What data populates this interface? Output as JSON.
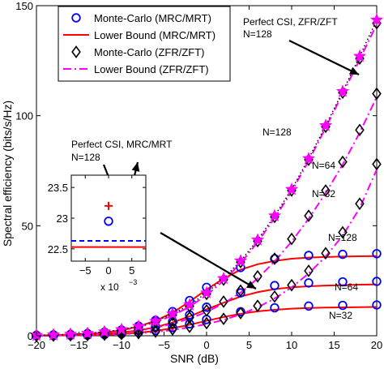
{
  "chart_data": {
    "type": "line",
    "xlabel": "SNR (dB)",
    "ylabel": "Spectral efficiency (bits/s/Hz)",
    "xlim": [
      -20,
      20
    ],
    "ylim": [
      0,
      150
    ],
    "x_ticks": [
      -20,
      -15,
      -10,
      -5,
      0,
      5,
      10,
      15,
      20
    ],
    "y_ticks": [
      0,
      50,
      100,
      150
    ],
    "legend_position": "top-left",
    "legend": [
      {
        "label": "Monte-Carlo (MRC/MRT)",
        "marker": "circle",
        "color": "#0000ff"
      },
      {
        "label": "Lower Bound (MRC/MRT)",
        "line": "solid",
        "color": "#ff0000"
      },
      {
        "label": "Monte-Carlo (ZFR/ZFT)",
        "marker": "diamond",
        "color": "#000000"
      },
      {
        "label": "Lower Bound (ZFR/ZFT)",
        "line": "dashdot",
        "color": "#ff00ff"
      }
    ],
    "x": [
      -20,
      -18,
      -16,
      -14,
      -12,
      -10,
      -8,
      -6,
      -4,
      -2,
      0,
      2,
      4,
      6,
      8,
      10,
      12,
      14,
      16,
      18,
      20
    ],
    "series": [
      {
        "name": "Monte-Carlo (MRC/MRT)",
        "group": "N=128",
        "marker": "circle",
        "color": "#0000ff",
        "values": [
          0.2,
          0.4,
          0.6,
          1.0,
          1.6,
          2.6,
          4.4,
          7.0,
          11.0,
          16.0,
          22.0,
          27.0,
          31.0,
          33.5,
          35.0,
          36.0,
          36.5,
          36.8,
          37.0,
          37.2,
          37.3
        ]
      },
      {
        "name": "Lower Bound (MRC/MRT)",
        "group": "N=128",
        "line": "solid",
        "color": "#ff0000",
        "values": [
          0.1,
          0.3,
          0.5,
          0.9,
          1.5,
          2.5,
          4.2,
          6.8,
          10.5,
          15.5,
          21.0,
          26.0,
          30.0,
          32.5,
          34.0,
          35.0,
          35.5,
          35.8,
          36.0,
          36.1,
          36.2
        ]
      },
      {
        "name": "Monte-Carlo (MRC/MRT)",
        "group": "N=64",
        "marker": "circle",
        "color": "#0000ff",
        "values": [
          0.1,
          0.2,
          0.3,
          0.6,
          1.0,
          1.6,
          2.6,
          4.2,
          6.5,
          9.5,
          13.0,
          16.5,
          19.5,
          21.5,
          22.8,
          23.6,
          24.0,
          24.3,
          24.5,
          24.6,
          24.7
        ]
      },
      {
        "name": "Lower Bound (MRC/MRT)",
        "group": "N=64",
        "line": "solid",
        "color": "#ff0000",
        "values": [
          0.1,
          0.2,
          0.3,
          0.5,
          0.9,
          1.5,
          2.4,
          3.9,
          6.0,
          8.8,
          12.0,
          15.0,
          17.8,
          19.8,
          21.2,
          22.0,
          22.5,
          22.8,
          23.0,
          23.2,
          23.3
        ]
      },
      {
        "name": "Monte-Carlo (MRC/MRT)",
        "group": "N=32",
        "marker": "circle",
        "color": "#0000ff",
        "values": [
          0.0,
          0.1,
          0.2,
          0.3,
          0.5,
          0.9,
          1.5,
          2.4,
          3.7,
          5.4,
          7.4,
          9.3,
          10.9,
          12.0,
          12.7,
          13.2,
          13.5,
          13.7,
          13.8,
          13.9,
          14.0
        ]
      },
      {
        "name": "Lower Bound (MRC/MRT)",
        "group": "N=32",
        "line": "solid",
        "color": "#ff0000",
        "values": [
          0.0,
          0.1,
          0.2,
          0.3,
          0.5,
          0.8,
          1.4,
          2.2,
          3.4,
          5.0,
          6.8,
          8.5,
          10.0,
          11.1,
          11.8,
          12.3,
          12.6,
          12.8,
          12.9,
          13.0,
          13.1
        ]
      },
      {
        "name": "Monte-Carlo (ZFR/ZFT)",
        "group": "N=128",
        "marker": "diamond",
        "color": "#000000",
        "values": [
          0.2,
          0.3,
          0.6,
          1.0,
          1.6,
          2.5,
          4.0,
          6.3,
          9.5,
          13.5,
          19.0,
          25.5,
          33.5,
          43.0,
          54.0,
          66.0,
          80.0,
          95.0,
          110.5,
          126.0,
          142.0
        ]
      },
      {
        "name": "Lower Bound (ZFR/ZFT)",
        "group": "N=128",
        "line": "dashdot",
        "color": "#ff00ff",
        "values": [
          0.2,
          0.3,
          0.6,
          0.9,
          1.5,
          2.4,
          3.9,
          6.1,
          9.2,
          13.2,
          18.5,
          25.0,
          33.0,
          42.5,
          53.5,
          65.5,
          79.5,
          94.5,
          110.0,
          125.5,
          141.5
        ]
      },
      {
        "name": "Monte-Carlo (ZFR/ZFT)",
        "group": "N=64",
        "marker": "diamond",
        "color": "#000000",
        "values": [
          0.1,
          0.2,
          0.3,
          0.6,
          1.0,
          1.6,
          2.5,
          3.9,
          5.8,
          8.3,
          11.5,
          15.5,
          20.5,
          27.0,
          35.0,
          44.0,
          54.5,
          66.0,
          79.0,
          93.5,
          110.0
        ]
      },
      {
        "name": "Lower Bound (ZFR/ZFT)",
        "group": "N=64",
        "line": "dashdot",
        "color": "#ff00ff",
        "values": [
          0.1,
          0.2,
          0.3,
          0.5,
          0.9,
          1.4,
          2.3,
          3.6,
          5.4,
          7.8,
          10.8,
          14.7,
          19.6,
          26.0,
          33.8,
          42.8,
          53.2,
          64.8,
          77.8,
          92.3,
          108.5
        ]
      },
      {
        "name": "Monte-Carlo (ZFR/ZFT)",
        "group": "N=32",
        "marker": "diamond",
        "color": "#000000",
        "values": [
          0.0,
          0.1,
          0.2,
          0.3,
          0.5,
          0.8,
          1.2,
          1.9,
          2.9,
          4.1,
          5.7,
          7.7,
          10.3,
          13.6,
          17.8,
          23.0,
          29.5,
          37.5,
          47.0,
          60.0,
          78.0
        ]
      },
      {
        "name": "Lower Bound (ZFR/ZFT)",
        "group": "N=32",
        "line": "dashdot",
        "color": "#ff00ff",
        "values": [
          0.0,
          0.1,
          0.2,
          0.3,
          0.4,
          0.7,
          1.1,
          1.7,
          2.6,
          3.8,
          5.3,
          7.2,
          9.7,
          12.9,
          16.9,
          22.0,
          28.3,
          36.0,
          45.5,
          58.0,
          75.5
        ]
      },
      {
        "name": "Perfect CSI, ZFR/ZFT",
        "group": "N=128",
        "marker": "star",
        "line": "dotted",
        "color": "#ff00ff",
        "values": [
          0.2,
          0.4,
          0.7,
          1.1,
          1.8,
          2.8,
          4.3,
          6.6,
          9.9,
          14.0,
          19.5,
          26.0,
          34.0,
          43.5,
          54.5,
          66.5,
          80.5,
          95.5,
          111.0,
          127.0,
          143.5
        ]
      }
    ],
    "annotations": [
      {
        "text": "Perfect CSI, ZFR/ZFT",
        "text2": "N=128"
      },
      {
        "text": "Perfect CSI, MRC/MRT",
        "text2": "N=128"
      },
      {
        "text": "N=128"
      },
      {
        "text": "N=64"
      },
      {
        "text": "N=32"
      },
      {
        "text": "N=128"
      },
      {
        "text": "N=64"
      },
      {
        "text": "N=32"
      }
    ],
    "inset": {
      "xlim": [
        -8,
        8
      ],
      "ylim": [
        22.3,
        23.7
      ],
      "x_ticks": [
        -5,
        0,
        5
      ],
      "y_ticks": [
        22.5,
        23,
        23.5
      ],
      "x_tick_labels": [
        "−5",
        "0",
        "5"
      ],
      "x_scale_label": "x 10",
      "x_scale_exponent": "−3",
      "points": [
        {
          "x": 0,
          "y": 23.2,
          "marker": "plus",
          "color": "#ff0000"
        },
        {
          "x": 0,
          "y": 22.95,
          "marker": "circle",
          "color": "#0000ff"
        }
      ],
      "lines": [
        {
          "y": 22.63,
          "style": "dashed",
          "color": "#0000ff"
        },
        {
          "y": 22.53,
          "style": "solid",
          "color": "#ff0000"
        }
      ]
    }
  }
}
